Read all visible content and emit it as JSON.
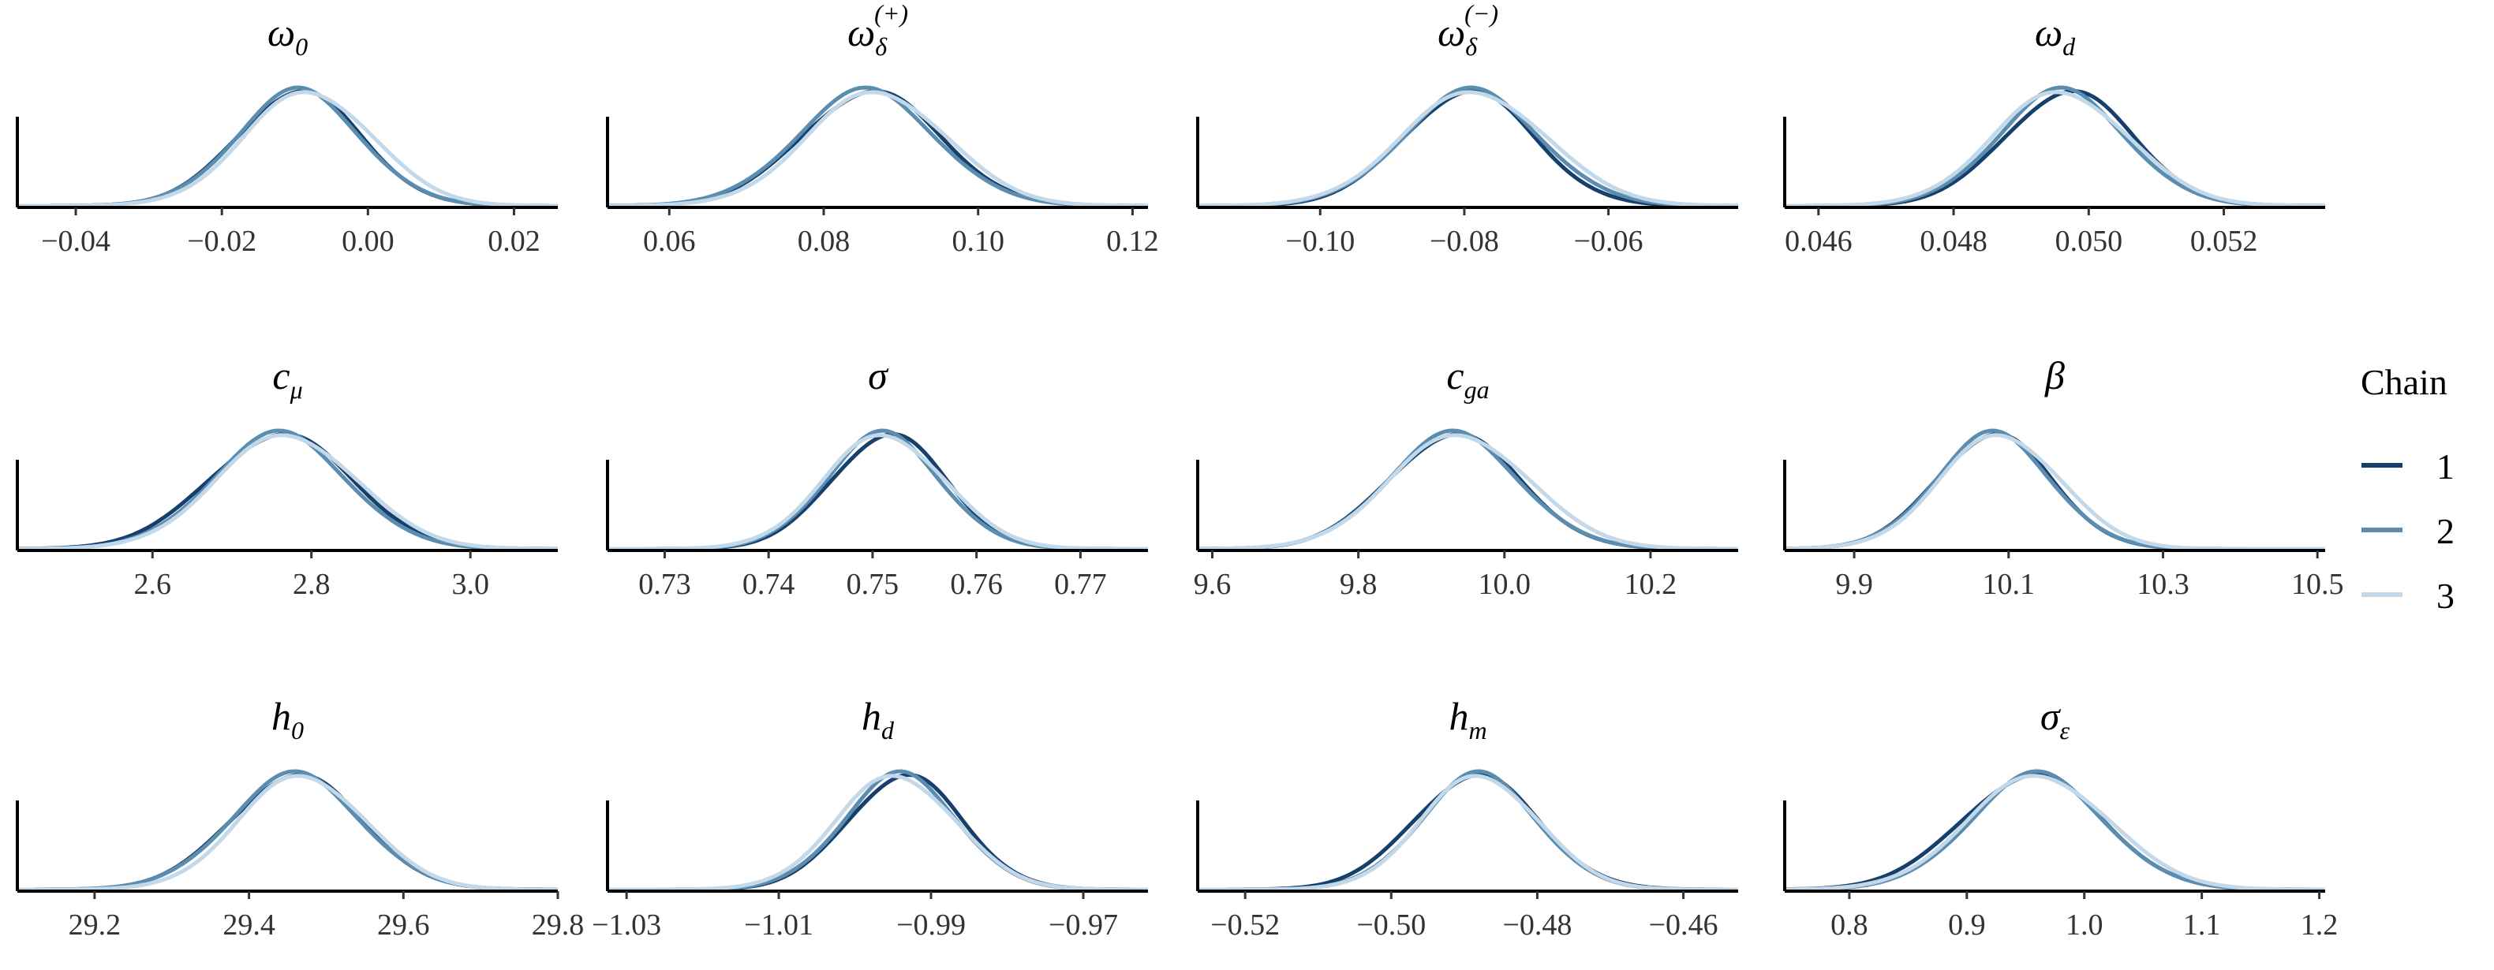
{
  "legend": {
    "title": "Chain",
    "position": "right",
    "entries": [
      {
        "label": "1",
        "color": "#163f6b"
      },
      {
        "label": "2",
        "color": "#5b8db1"
      },
      {
        "label": "3",
        "color": "#c3d9ea"
      }
    ]
  },
  "chart_data": [
    {
      "type": "area",
      "title": {
        "base": "ω",
        "sub": "0",
        "sup": ""
      },
      "xlim": [
        -0.048,
        0.026
      ],
      "ticks": [
        -0.04,
        -0.02,
        0.0,
        0.02
      ],
      "tick_labels": [
        "−0.04",
        "−0.02",
        "0.00",
        "0.02"
      ],
      "series": [
        {
          "name": "1",
          "mean": -0.0095,
          "sd": 0.0085
        },
        {
          "name": "2",
          "mean": -0.0095,
          "sd": 0.0085
        },
        {
          "name": "3",
          "mean": -0.008,
          "sd": 0.0088
        }
      ]
    },
    {
      "type": "area",
      "title": {
        "base": "ω",
        "sub": "δ",
        "sup": "(+)"
      },
      "xlim": [
        0.052,
        0.122
      ],
      "ticks": [
        0.06,
        0.08,
        0.1,
        0.12
      ],
      "tick_labels": [
        "0.06",
        "0.08",
        "0.10",
        "0.12"
      ],
      "series": [
        {
          "name": "1",
          "mean": 0.086,
          "sd": 0.009
        },
        {
          "name": "2",
          "mean": 0.0855,
          "sd": 0.009
        },
        {
          "name": "3",
          "mean": 0.087,
          "sd": 0.009
        }
      ]
    },
    {
      "type": "area",
      "title": {
        "base": "ω",
        "sub": "δ",
        "sup": "(−)"
      },
      "xlim": [
        -0.117,
        -0.042
      ],
      "ticks": [
        -0.1,
        -0.08,
        -0.06
      ],
      "tick_labels": [
        "−0.10",
        "−0.08",
        "−0.06"
      ],
      "series": [
        {
          "name": "1",
          "mean": -0.0795,
          "sd": 0.009
        },
        {
          "name": "2",
          "mean": -0.079,
          "sd": 0.0095
        },
        {
          "name": "3",
          "mean": -0.0785,
          "sd": 0.01
        }
      ]
    },
    {
      "type": "area",
      "title": {
        "base": "ω",
        "sub": "d",
        "sup": ""
      },
      "xlim": [
        0.0455,
        0.0535
      ],
      "ticks": [
        0.046,
        0.048,
        0.05,
        0.052
      ],
      "tick_labels": [
        "0.046",
        "0.048",
        "0.050",
        "0.052"
      ],
      "series": [
        {
          "name": "1",
          "mean": 0.0497,
          "sd": 0.00095
        },
        {
          "name": "2",
          "mean": 0.0496,
          "sd": 0.00095
        },
        {
          "name": "3",
          "mean": 0.0496,
          "sd": 0.001
        }
      ]
    },
    {
      "type": "area",
      "title": {
        "base": "c",
        "sub": "μ",
        "sup": ""
      },
      "xlim": [
        2.43,
        3.11
      ],
      "ticks": [
        2.6,
        2.8,
        3.0
      ],
      "tick_labels": [
        "2.6",
        "2.8",
        "3.0"
      ],
      "series": [
        {
          "name": "1",
          "mean": 2.76,
          "sd": 0.09
        },
        {
          "name": "2",
          "mean": 2.76,
          "sd": 0.085
        },
        {
          "name": "3",
          "mean": 2.77,
          "sd": 0.088
        }
      ]
    },
    {
      "type": "area",
      "title": {
        "base": "σ",
        "sub": "",
        "sup": ""
      },
      "xlim": [
        0.7245,
        0.7765
      ],
      "ticks": [
        0.73,
        0.74,
        0.75,
        0.76,
        0.77
      ],
      "tick_labels": [
        "0.73",
        "0.74",
        "0.75",
        "0.76",
        "0.77"
      ],
      "series": [
        {
          "name": "1",
          "mean": 0.7515,
          "sd": 0.0055
        },
        {
          "name": "2",
          "mean": 0.751,
          "sd": 0.0055
        },
        {
          "name": "3",
          "mean": 0.7512,
          "sd": 0.0058
        }
      ]
    },
    {
      "type": "area",
      "title": {
        "base": "c",
        "sub": "ga",
        "sup": ""
      },
      "xlim": [
        9.58,
        10.32
      ],
      "ticks": [
        9.6,
        9.8,
        10.0,
        10.2
      ],
      "tick_labels": [
        "9.6",
        "9.8",
        "10.0",
        "10.2"
      ],
      "series": [
        {
          "name": "1",
          "mean": 9.93,
          "sd": 0.09
        },
        {
          "name": "2",
          "mean": 9.93,
          "sd": 0.09
        },
        {
          "name": "3",
          "mean": 9.94,
          "sd": 0.095
        }
      ]
    },
    {
      "type": "area",
      "title": {
        "base": "β",
        "sub": "",
        "sup": ""
      },
      "xlim": [
        9.81,
        10.51
      ],
      "ticks": [
        9.9,
        10.1,
        10.3,
        10.5
      ],
      "tick_labels": [
        "9.9",
        "10.1",
        "10.3",
        "10.5"
      ],
      "series": [
        {
          "name": "1",
          "mean": 10.08,
          "sd": 0.075
        },
        {
          "name": "2",
          "mean": 10.08,
          "sd": 0.075
        },
        {
          "name": "3",
          "mean": 10.09,
          "sd": 0.078
        }
      ]
    },
    {
      "type": "area",
      "title": {
        "base": "h",
        "sub": "0",
        "sup": ""
      },
      "xlim": [
        29.1,
        29.8
      ],
      "ticks": [
        29.2,
        29.4,
        29.6,
        29.8
      ],
      "tick_labels": [
        "29.2",
        "29.4",
        "29.6",
        "29.8"
      ],
      "series": [
        {
          "name": "1",
          "mean": 29.46,
          "sd": 0.085
        },
        {
          "name": "2",
          "mean": 29.46,
          "sd": 0.085
        },
        {
          "name": "3",
          "mean": 29.47,
          "sd": 0.082
        }
      ]
    },
    {
      "type": "area",
      "title": {
        "base": "h",
        "sub": "d",
        "sup": ""
      },
      "xlim": [
        -1.0325,
        -0.9615
      ],
      "ticks": [
        -1.03,
        -1.01,
        -0.99,
        -0.97
      ],
      "tick_labels": [
        "−1.03",
        "−1.01",
        "−0.99",
        "−0.97"
      ],
      "series": [
        {
          "name": "1",
          "mean": -0.9935,
          "sd": 0.0075
        },
        {
          "name": "2",
          "mean": -0.994,
          "sd": 0.0075
        },
        {
          "name": "3",
          "mean": -0.9945,
          "sd": 0.0078
        }
      ]
    },
    {
      "type": "area",
      "title": {
        "base": "h",
        "sub": "m",
        "sup": ""
      },
      "xlim": [
        -0.5265,
        -0.4525
      ],
      "ticks": [
        -0.52,
        -0.5,
        -0.48,
        -0.46
      ],
      "tick_labels": [
        "−0.52",
        "−0.50",
        "−0.48",
        "−0.46"
      ],
      "series": [
        {
          "name": "1",
          "mean": -0.4885,
          "sd": 0.0085
        },
        {
          "name": "2",
          "mean": -0.488,
          "sd": 0.008
        },
        {
          "name": "3",
          "mean": -0.4878,
          "sd": 0.008
        }
      ]
    },
    {
      "type": "area",
      "title": {
        "base": "σ",
        "sub": "ε",
        "sup": ""
      },
      "xlim": [
        0.745,
        1.205
      ],
      "ticks": [
        0.8,
        0.9,
        1.0,
        1.1,
        1.2
      ],
      "tick_labels": [
        "0.8",
        "0.9",
        "1.0",
        "1.1",
        "1.2"
      ],
      "series": [
        {
          "name": "1",
          "mean": 0.955,
          "sd": 0.06
        },
        {
          "name": "2",
          "mean": 0.96,
          "sd": 0.057
        },
        {
          "name": "3",
          "mean": 0.962,
          "sd": 0.06
        }
      ]
    }
  ]
}
